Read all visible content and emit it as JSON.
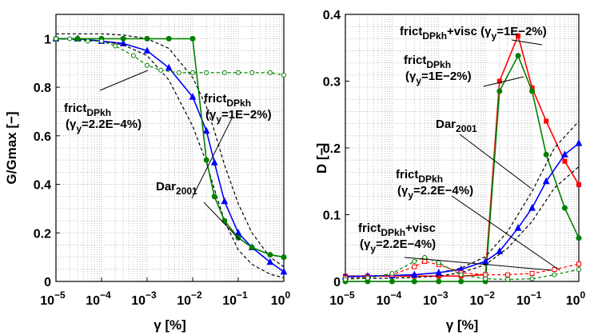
{
  "chart_data": [
    {
      "type": "line",
      "xscale": "log",
      "xlim": [
        1e-05,
        1
      ],
      "ylim": [
        0,
        1.1
      ],
      "xlabel": "γ [%]",
      "ylabel": "G/Gmax [−]",
      "xticks": [
        "10",
        "10",
        "10",
        "10",
        "10",
        "10"
      ],
      "xtick_exponents": [
        "−5",
        "−4",
        "−3",
        "−2",
        "−1",
        "0"
      ],
      "yticks": [
        "0",
        "0.2",
        "0.4",
        "0.6",
        "0.8",
        "1"
      ],
      "grid": true,
      "series": [
        {
          "color": "#0000ff",
          "marker": "triangle",
          "style": "solid",
          "x": [
            1e-05,
            3e-05,
            0.0001,
            0.0003,
            0.001,
            0.003,
            0.01,
            0.02,
            0.03,
            0.05,
            0.1,
            0.2,
            0.5,
            1
          ],
          "y": [
            1.0,
            1.0,
            0.99,
            0.98,
            0.95,
            0.88,
            0.76,
            0.62,
            0.49,
            0.33,
            0.2,
            0.14,
            0.08,
            0.04
          ]
        },
        {
          "color": "#000000",
          "marker": "none",
          "style": "dashed",
          "x": [
            1e-05,
            0.0001,
            0.0003,
            0.001,
            0.003,
            0.01,
            0.02,
            0.03,
            0.05,
            0.1,
            0.2,
            0.5,
            1
          ],
          "y": [
            1.0,
            0.99,
            0.975,
            0.93,
            0.83,
            0.64,
            0.49,
            0.38,
            0.25,
            0.13,
            0.07,
            0.03,
            0.015
          ]
        },
        {
          "color": "#000000",
          "marker": "none",
          "style": "dashed",
          "x": [
            1e-05,
            0.0001,
            0.0003,
            0.001,
            0.003,
            0.01,
            0.02,
            0.03,
            0.05,
            0.1,
            0.2,
            0.5,
            1
          ],
          "y": [
            1.02,
            1.02,
            1.015,
            1.0,
            0.96,
            0.84,
            0.72,
            0.62,
            0.48,
            0.32,
            0.2,
            0.1,
            0.06
          ]
        },
        {
          "color": "#008000",
          "marker": "circle-filled",
          "style": "solid",
          "x": [
            1e-05,
            3e-05,
            0.0001,
            0.0003,
            0.001,
            0.003,
            0.01,
            0.02,
            0.03,
            0.05,
            0.1,
            0.2,
            0.5,
            1
          ],
          "y": [
            1.0,
            1.0,
            1.0,
            1.0,
            1.0,
            1.0,
            1.0,
            0.5,
            0.35,
            0.25,
            0.18,
            0.14,
            0.11,
            0.1
          ]
        },
        {
          "color": "#008000",
          "marker": "circle-open",
          "style": "dashed",
          "x": [
            1e-05,
            2e-05,
            5e-05,
            0.0001,
            0.0002,
            0.0005,
            0.001,
            0.002,
            0.005,
            0.01,
            0.02,
            0.05,
            0.1,
            0.2,
            0.5,
            1
          ],
          "y": [
            1.0,
            1.0,
            0.99,
            0.99,
            0.97,
            0.93,
            0.89,
            0.87,
            0.86,
            0.86,
            0.86,
            0.86,
            0.86,
            0.86,
            0.86,
            0.85
          ]
        }
      ],
      "annotations": [
        {
          "parts": [
            [
              "frict",
              ""
            ],
            [
              "DPkh",
              "sub"
            ]
          ],
          "line2": [
            [
              "(γ",
              ""
            ],
            [
              "y",
              "sub"
            ],
            [
              "=2.2E−4%)",
              ""
            ]
          ]
        },
        {
          "parts": [
            [
              "frict",
              ""
            ],
            [
              "DPkh",
              "sub"
            ]
          ],
          "line2": [
            [
              "(γ",
              ""
            ],
            [
              "y",
              "sub"
            ],
            [
              "=1E−2%)",
              ""
            ]
          ]
        },
        {
          "parts": [
            [
              "Dar",
              ""
            ],
            [
              "2001",
              "sub"
            ]
          ]
        }
      ]
    },
    {
      "type": "line",
      "xscale": "log",
      "xlim": [
        1e-05,
        1
      ],
      "ylim": [
        0,
        0.4
      ],
      "xlabel": "γ [%]",
      "ylabel": "D [−]",
      "xticks": [
        "10",
        "10",
        "10",
        "10",
        "10",
        "10"
      ],
      "xtick_exponents": [
        "−5",
        "−4",
        "−3",
        "−2",
        "−1",
        "0"
      ],
      "yticks": [
        "0",
        "0.1",
        "0.2",
        "0.3",
        "0.4"
      ],
      "grid": true,
      "series": [
        {
          "color": "#ff0000",
          "marker": "square-filled",
          "style": "solid",
          "x": [
            1e-05,
            3e-05,
            0.0001,
            0.0003,
            0.001,
            0.003,
            0.01,
            0.02,
            0.05,
            0.1,
            0.2,
            0.5,
            1
          ],
          "y": [
            0.008,
            0.008,
            0.008,
            0.008,
            0.008,
            0.008,
            0.01,
            0.3,
            0.368,
            0.29,
            0.24,
            0.18,
            0.145
          ]
        },
        {
          "color": "#008000",
          "marker": "circle-filled",
          "style": "solid",
          "x": [
            1e-05,
            3e-05,
            0.0001,
            0.0003,
            0.001,
            0.003,
            0.01,
            0.02,
            0.05,
            0.1,
            0.2,
            0.5,
            1
          ],
          "y": [
            0.0,
            0.0,
            0.0,
            0.0,
            0.0,
            0.0,
            0.0,
            0.285,
            0.338,
            0.285,
            0.19,
            0.11,
            0.065
          ]
        },
        {
          "color": "#000000",
          "marker": "none",
          "style": "dashed",
          "x": [
            1e-05,
            0.0001,
            0.0003,
            0.001,
            0.003,
            0.01,
            0.03,
            0.1,
            0.3,
            1
          ],
          "y": [
            0.004,
            0.005,
            0.006,
            0.008,
            0.013,
            0.025,
            0.05,
            0.09,
            0.14,
            0.172
          ]
        },
        {
          "color": "#000000",
          "marker": "none",
          "style": "dashed",
          "x": [
            1e-05,
            0.0001,
            0.0003,
            0.001,
            0.003,
            0.01,
            0.03,
            0.1,
            0.3,
            1
          ],
          "y": [
            0.008,
            0.009,
            0.01,
            0.013,
            0.02,
            0.037,
            0.075,
            0.135,
            0.2,
            0.24
          ]
        },
        {
          "color": "#0000ff",
          "marker": "triangle",
          "style": "solid",
          "x": [
            1e-05,
            3e-05,
            0.0001,
            0.0003,
            0.001,
            0.003,
            0.01,
            0.02,
            0.05,
            0.1,
            0.2,
            0.5,
            1
          ],
          "y": [
            0.007,
            0.008,
            0.009,
            0.01,
            0.013,
            0.018,
            0.03,
            0.045,
            0.08,
            0.11,
            0.15,
            0.19,
            0.207
          ]
        },
        {
          "color": "#ff0000",
          "marker": "square-open",
          "style": "dashed",
          "x": [
            1e-05,
            3e-05,
            0.0001,
            0.0003,
            0.0005,
            0.001,
            0.003,
            0.01,
            0.03,
            0.1,
            0.3,
            1
          ],
          "y": [
            0.005,
            0.006,
            0.01,
            0.022,
            0.03,
            0.025,
            0.013,
            0.01,
            0.01,
            0.012,
            0.018,
            0.026
          ]
        },
        {
          "color": "#008000",
          "marker": "circle-open",
          "style": "dashed",
          "x": [
            1e-05,
            3e-05,
            0.0001,
            0.0003,
            0.0005,
            0.001,
            0.003,
            0.01,
            0.03,
            0.1,
            0.3,
            1
          ],
          "y": [
            0.003,
            0.005,
            0.012,
            0.03,
            0.036,
            0.028,
            0.01,
            0.004,
            0.003,
            0.004,
            0.01,
            0.018
          ]
        }
      ],
      "annotations": [
        {
          "parts": [
            [
              "frict",
              ""
            ],
            [
              "DPkh",
              "sub"
            ],
            [
              "+visc (γ",
              ""
            ],
            [
              "y",
              "sub"
            ],
            [
              "=1E−2%)",
              ""
            ]
          ]
        },
        {
          "parts": [
            [
              "frict",
              ""
            ],
            [
              "DPkh",
              "sub"
            ]
          ],
          "line2": [
            [
              "(γ",
              ""
            ],
            [
              "y",
              "sub"
            ],
            [
              "=1E−2%)",
              ""
            ]
          ]
        },
        {
          "parts": [
            [
              "Dar",
              ""
            ],
            [
              "2001",
              "sub"
            ]
          ]
        },
        {
          "parts": [
            [
              "frict",
              ""
            ],
            [
              "DPkh",
              "sub"
            ]
          ],
          "line2": [
            [
              "(γ",
              ""
            ],
            [
              "y",
              "sub"
            ],
            [
              "=2.2E−4%)",
              ""
            ]
          ]
        },
        {
          "parts": [
            [
              "frict",
              ""
            ],
            [
              "DPkh",
              "sub"
            ],
            [
              "+visc",
              ""
            ]
          ],
          "line2": [
            [
              "(γ",
              ""
            ],
            [
              "y",
              "sub"
            ],
            [
              "=2.2E−4%)",
              ""
            ]
          ]
        }
      ]
    }
  ]
}
